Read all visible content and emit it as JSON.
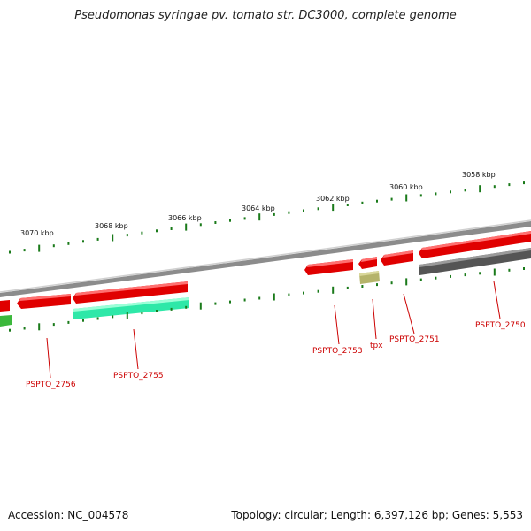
{
  "title": "Pseudomonas syringae pv. tomato str. DC3000, complete genome",
  "footer": {
    "accession": "Accession: NC_004578",
    "stats": "Topology: circular; Length: 6,397,126 bp; Genes: 5,553"
  },
  "ruler": {
    "labels": [
      "3058 kbp",
      "3060 kbp",
      "3062 kbp",
      "3064 kbp",
      "3066 kbp",
      "3068 kbp",
      "3070 kbp"
    ]
  },
  "genes": {
    "labels": [
      "PSPTO_2750",
      "PSPTO_2751",
      "tpx",
      "PSPTO_2753",
      "PSPTO_2755",
      "PSPTO_2756"
    ]
  },
  "colors": {
    "backbone": "#8c8c8c",
    "cds_forward": "#e00000",
    "cds_highlight": "#ff6f6f",
    "label_red": "#cc0000",
    "tick_green": "#1a7a1a",
    "teal": "#2ee8a8",
    "olive": "#b5b36a",
    "dark_gray": "#555555",
    "green": "#3cb83c"
  }
}
